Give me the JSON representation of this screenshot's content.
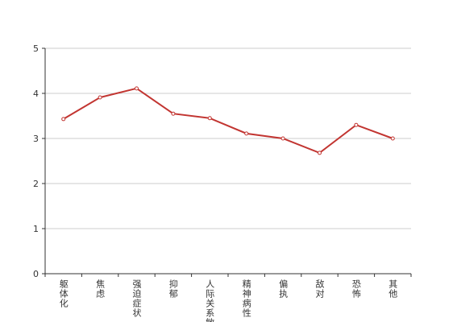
{
  "chart_data": {
    "type": "line",
    "categories": [
      "躯体化",
      "焦虑",
      "强迫症状",
      "抑郁",
      "人际关系敏感",
      "精神病性",
      "偏执",
      "敌对",
      "恐怖",
      "其他"
    ],
    "values": [
      3.43,
      3.91,
      4.11,
      3.55,
      3.45,
      3.11,
      3.0,
      2.68,
      3.3,
      3.0
    ],
    "color": "#c23531",
    "ylim": [
      0,
      5
    ],
    "yticks": [
      0,
      1,
      2,
      3,
      4,
      5
    ],
    "grid": true
  }
}
